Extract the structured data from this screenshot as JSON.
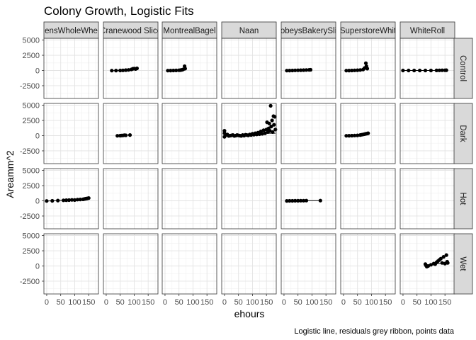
{
  "chart_data": {
    "type": "scatter",
    "title": "Colony Growth, Logistic Fits",
    "xlabel": "ehours",
    "ylabel": "Areamm^2",
    "caption": "Logistic line, residuals grey ribbon, points data",
    "columns": [
      "DempstersWholeWheat",
      "CranewoodSliced",
      "MontrealBagel",
      "Naan",
      "SobeysBakerySliced",
      "SuperstoreWhite",
      "WhiteRoll"
    ],
    "column_labels": [
      "ensWholeWhe",
      "Cranewood Slice",
      "MontrealBagel",
      "Naan",
      "obeysBakerySli",
      "SuperstoreWhit",
      "WhiteRoll"
    ],
    "rows": [
      "Control",
      "Dark",
      "Hot",
      "Wet"
    ],
    "xlim": [
      -10,
      185
    ],
    "ylim": [
      -4600,
      5300
    ],
    "x_ticks": [
      0,
      50,
      100,
      150
    ],
    "x_tick_labels": [
      "0",
      "50",
      "100",
      "150"
    ],
    "y_ticks": [
      5000,
      2500,
      0,
      -2500
    ],
    "y_tick_labels": [
      "5000",
      "2500",
      "0",
      "-2500"
    ],
    "grid": true,
    "legend": "none",
    "point_color": "#000000",
    "strip_fill": "#d9d9d9",
    "panels": [
      {
        "row": "Control",
        "column": "CranewoodSliced",
        "points": [
          [
            20,
            -20
          ],
          [
            35,
            -10
          ],
          [
            50,
            0
          ],
          [
            60,
            20
          ],
          [
            70,
            60
          ],
          [
            80,
            90
          ],
          [
            90,
            180
          ],
          [
            95,
            280
          ],
          [
            100,
            320
          ],
          [
            105,
            250
          ],
          [
            110,
            350
          ]
        ]
      },
      {
        "row": "Control",
        "column": "MontrealBagel",
        "points": [
          [
            10,
            -20
          ],
          [
            20,
            -10
          ],
          [
            30,
            0
          ],
          [
            40,
            10
          ],
          [
            50,
            30
          ],
          [
            55,
            60
          ],
          [
            60,
            100
          ],
          [
            65,
            180
          ],
          [
            70,
            700
          ],
          [
            72,
            300
          ]
        ]
      },
      {
        "row": "Control",
        "column": "SobeysBakerySliced",
        "points": [
          [
            10,
            -20
          ],
          [
            20,
            -10
          ],
          [
            30,
            0
          ],
          [
            40,
            20
          ],
          [
            50,
            30
          ],
          [
            60,
            50
          ],
          [
            70,
            60
          ],
          [
            80,
            80
          ],
          [
            90,
            100
          ],
          [
            95,
            120
          ]
        ]
      },
      {
        "row": "Control",
        "column": "SuperstoreWhite",
        "points": [
          [
            10,
            -20
          ],
          [
            20,
            -10
          ],
          [
            30,
            0
          ],
          [
            40,
            20
          ],
          [
            50,
            50
          ],
          [
            60,
            80
          ],
          [
            70,
            150
          ],
          [
            75,
            400
          ],
          [
            80,
            1200
          ],
          [
            82,
            700
          ],
          [
            85,
            300
          ]
        ]
      },
      {
        "row": "Control",
        "column": "WhiteRoll",
        "points": [
          [
            0,
            0
          ],
          [
            20,
            0
          ],
          [
            40,
            0
          ],
          [
            60,
            0
          ],
          [
            80,
            0
          ],
          [
            100,
            0
          ],
          [
            120,
            10
          ],
          [
            130,
            20
          ],
          [
            140,
            30
          ],
          [
            150,
            40
          ],
          [
            155,
            50
          ]
        ]
      },
      {
        "row": "Dark",
        "column": "CranewoodSliced",
        "points": [
          [
            40,
            -20
          ],
          [
            50,
            0
          ],
          [
            55,
            20
          ],
          [
            60,
            40
          ],
          [
            65,
            80
          ],
          [
            70,
            60
          ],
          [
            85,
            100
          ]
        ]
      },
      {
        "row": "Dark",
        "column": "Naan",
        "points": [
          [
            0,
            800
          ],
          [
            0,
            400
          ],
          [
            0,
            -200
          ],
          [
            5,
            100
          ],
          [
            10,
            200
          ],
          [
            15,
            -50
          ],
          [
            20,
            0
          ],
          [
            25,
            50
          ],
          [
            30,
            100
          ],
          [
            35,
            -50
          ],
          [
            40,
            0
          ],
          [
            45,
            100
          ],
          [
            50,
            50
          ],
          [
            55,
            0
          ],
          [
            60,
            -50
          ],
          [
            65,
            100
          ],
          [
            70,
            0
          ],
          [
            75,
            150
          ],
          [
            80,
            100
          ],
          [
            85,
            50
          ],
          [
            90,
            200
          ],
          [
            95,
            100
          ],
          [
            100,
            300
          ],
          [
            105,
            150
          ],
          [
            110,
            400
          ],
          [
            115,
            200
          ],
          [
            120,
            500
          ],
          [
            125,
            250
          ],
          [
            130,
            700
          ],
          [
            135,
            300
          ],
          [
            140,
            900
          ],
          [
            145,
            400
          ],
          [
            150,
            1000
          ],
          [
            152,
            2200
          ],
          [
            155,
            600
          ],
          [
            158,
            1200
          ],
          [
            160,
            2000
          ],
          [
            162,
            800
          ],
          [
            165,
            4900
          ],
          [
            167,
            1500
          ],
          [
            170,
            2500
          ],
          [
            172,
            600
          ],
          [
            175,
            3200
          ],
          [
            177,
            1800
          ],
          [
            180,
            3100
          ],
          [
            182,
            1000
          ]
        ]
      },
      {
        "row": "Dark",
        "column": "SuperstoreWhite",
        "points": [
          [
            10,
            -20
          ],
          [
            20,
            -10
          ],
          [
            30,
            0
          ],
          [
            40,
            20
          ],
          [
            50,
            50
          ],
          [
            60,
            100
          ],
          [
            65,
            150
          ],
          [
            70,
            200
          ],
          [
            75,
            250
          ],
          [
            80,
            300
          ],
          [
            85,
            350
          ],
          [
            88,
            400
          ]
        ]
      },
      {
        "row": "Hot",
        "column": "DempstersWholeWheat",
        "points": [
          [
            0,
            -20
          ],
          [
            20,
            0
          ],
          [
            40,
            50
          ],
          [
            60,
            80
          ],
          [
            70,
            100
          ],
          [
            80,
            120
          ],
          [
            90,
            150
          ],
          [
            100,
            130
          ],
          [
            110,
            200
          ],
          [
            120,
            220
          ],
          [
            130,
            250
          ],
          [
            135,
            300
          ],
          [
            140,
            350
          ],
          [
            145,
            400
          ],
          [
            150,
            450
          ]
        ]
      },
      {
        "row": "Hot",
        "column": "SobeysBakerySliced",
        "points": [
          [
            10,
            -10
          ],
          [
            20,
            -5
          ],
          [
            30,
            0
          ],
          [
            40,
            10
          ],
          [
            50,
            15
          ],
          [
            60,
            20
          ],
          [
            70,
            25
          ],
          [
            80,
            30
          ],
          [
            130,
            40
          ]
        ]
      },
      {
        "row": "Wet",
        "column": "WhiteRoll",
        "points": [
          [
            80,
            300
          ],
          [
            82,
            100
          ],
          [
            85,
            -100
          ],
          [
            90,
            0
          ],
          [
            100,
            200
          ],
          [
            110,
            400
          ],
          [
            115,
            300
          ],
          [
            120,
            600
          ],
          [
            125,
            800
          ],
          [
            130,
            1000
          ],
          [
            135,
            1200
          ],
          [
            140,
            500
          ],
          [
            145,
            1500
          ],
          [
            150,
            400
          ],
          [
            155,
            1800
          ],
          [
            158,
            700
          ],
          [
            160,
            500
          ]
        ]
      }
    ]
  }
}
